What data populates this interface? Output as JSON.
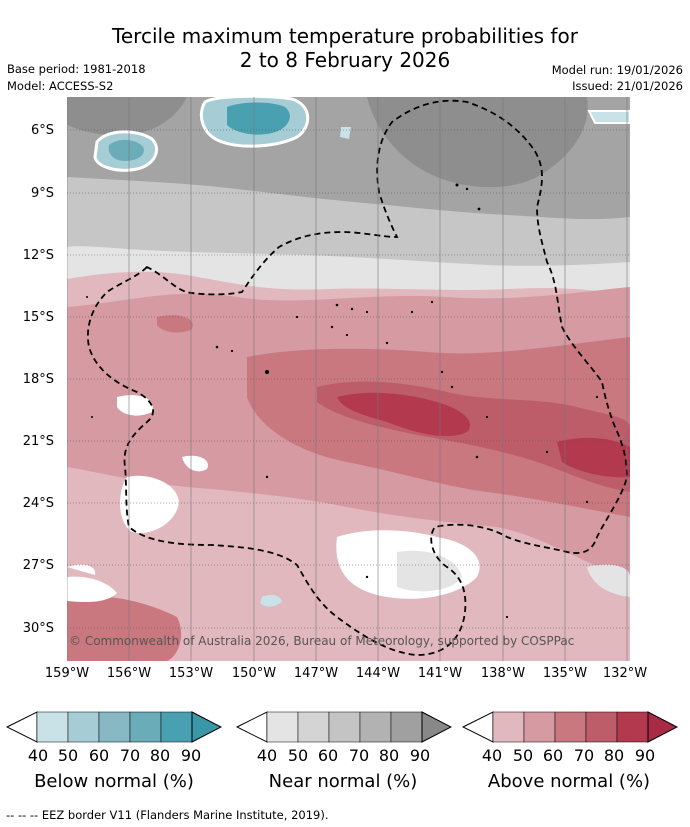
{
  "title": {
    "line1": "Tercile maximum temperature probabilities for",
    "line2": "2 to 8 February 2026"
  },
  "meta": {
    "base_period": "Base period: 1981-2018",
    "model": "Model: ACCESS-S2",
    "model_run": "Model run: 19/01/2026",
    "issued": "Issued: 21/01/2026"
  },
  "axes": {
    "lat_labels": [
      "6°S",
      "9°S",
      "12°S",
      "15°S",
      "18°S",
      "21°S",
      "24°S",
      "27°S",
      "30°S"
    ],
    "lon_labels": [
      "159°W",
      "156°W",
      "153°W",
      "150°W",
      "147°W",
      "144°W",
      "141°W",
      "138°W",
      "135°W",
      "132°W"
    ]
  },
  "copyright": "© Commonwealth of Australia 2026, Bureau of Meteorology, supported by COSPPac",
  "legend": {
    "below": {
      "label": "Below normal (%)",
      "ticks": [
        "40",
        "50",
        "60",
        "70",
        "80",
        "90"
      ],
      "colors": [
        "#ffffff",
        "#c9e2e8",
        "#a6cdd5",
        "#86b9c4",
        "#6aacb8",
        "#48a0b0"
      ]
    },
    "near": {
      "label": "Near normal (%)",
      "ticks": [
        "40",
        "50",
        "60",
        "70",
        "80",
        "90"
      ],
      "colors": [
        "#ffffff",
        "#e4e4e4",
        "#d4d4d4",
        "#c4c4c4",
        "#b2b2b2",
        "#a0a0a0",
        "#888888"
      ]
    },
    "above": {
      "label": "Above normal (%)",
      "ticks": [
        "40",
        "50",
        "60",
        "70",
        "80",
        "90"
      ],
      "colors": [
        "#ffffff",
        "#e2b8bf",
        "#d59aa2",
        "#c97880",
        "#be5d6a",
        "#b33a4e",
        "#a82a44"
      ]
    }
  },
  "footer": "--  --  -- EEZ border V11 (Flanders Marine Institute, 2019)."
}
